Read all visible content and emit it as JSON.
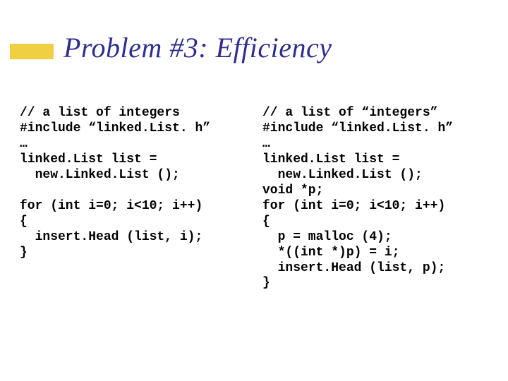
{
  "title": "Problem #3: Efficiency",
  "accent_color": "#f0d040",
  "title_color": "#2e2e8e",
  "code_color": "#000000",
  "code_font": "Courier New",
  "code_fontsize": 18,
  "title_fontsize": 40,
  "left_code": "// a list of integers\n#include “linked.List. h”\n…\nlinked.List list =\n  new.Linked.List ();\n\nfor (int i=0; i<10; i++)\n{\n  insert.Head (list, i);\n}",
  "right_code": "// a list of “integers”\n#include “linked.List. h”\n…\nlinked.List list =\n  new.Linked.List ();\nvoid *p;\nfor (int i=0; i<10; i++)\n{\n  p = malloc (4);\n  *((int *)p) = i;\n  insert.Head (list, p);\n}"
}
